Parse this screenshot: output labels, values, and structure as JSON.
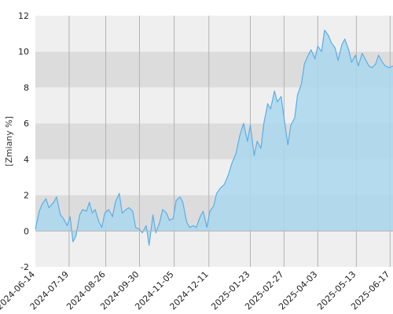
{
  "chart_data": {
    "type": "area",
    "title": "",
    "xlabel": "",
    "ylabel": "[Zmiany %]",
    "ylim": [
      -2,
      12
    ],
    "yticks": [
      "-2",
      "0",
      "2",
      "4",
      "6",
      "8",
      "10",
      "12"
    ],
    "x_range": [
      "2024-06-14",
      "2025-06-20"
    ],
    "xticks": [
      "2024-06-14",
      "2024-07-19",
      "2024-08-26",
      "2024-09-30",
      "2024-11-05",
      "2024-12-11",
      "2025-01-23",
      "2025-02-27",
      "2025-04-03",
      "2025-05-13",
      "2025-06-17"
    ],
    "grid": true,
    "banded_background": true,
    "legend": "none",
    "colors": {
      "line": "#5aaee6",
      "fill": "#aad7ee",
      "band_light": "#efefef",
      "band_dark": "#dcdcdc",
      "gridline": "#b3b3b3"
    },
    "series": [
      {
        "x": [
          "2024-06-14",
          "2024-06-18",
          "2024-06-21",
          "2024-06-25",
          "2024-06-28",
          "2024-07-03",
          "2024-07-06",
          "2024-07-10",
          "2024-07-13",
          "2024-07-17",
          "2024-07-20",
          "2024-07-23",
          "2024-07-26",
          "2024-07-30",
          "2024-08-02",
          "2024-08-06",
          "2024-08-09",
          "2024-08-12",
          "2024-08-15",
          "2024-08-19",
          "2024-08-22",
          "2024-08-25",
          "2024-08-29",
          "2024-09-02",
          "2024-09-05",
          "2024-09-09",
          "2024-09-12",
          "2024-09-16",
          "2024-09-19",
          "2024-09-23",
          "2024-09-26",
          "2024-09-30",
          "2024-10-03",
          "2024-10-07",
          "2024-10-10",
          "2024-10-14",
          "2024-10-17",
          "2024-10-21",
          "2024-10-24",
          "2024-10-28",
          "2024-10-31",
          "2024-11-04",
          "2024-11-07",
          "2024-11-11",
          "2024-11-14",
          "2024-11-18",
          "2024-11-21",
          "2024-11-25",
          "2024-11-28",
          "2024-12-02",
          "2024-12-05",
          "2024-12-09",
          "2024-12-12",
          "2024-12-16",
          "2024-12-19",
          "2024-12-23",
          "2024-12-27",
          "2024-12-31",
          "2025-01-04",
          "2025-01-08",
          "2025-01-12",
          "2025-01-16",
          "2025-01-20",
          "2025-01-23",
          "2025-01-27",
          "2025-01-30",
          "2025-02-03",
          "2025-02-06",
          "2025-02-10",
          "2025-02-13",
          "2025-02-17",
          "2025-02-20",
          "2025-02-24",
          "2025-02-27",
          "2025-03-03",
          "2025-03-06",
          "2025-03-10",
          "2025-03-13",
          "2025-03-17",
          "2025-03-20",
          "2025-03-24",
          "2025-03-27",
          "2025-03-31",
          "2025-04-03",
          "2025-04-07",
          "2025-04-10",
          "2025-04-14",
          "2025-04-17",
          "2025-04-21",
          "2025-04-24",
          "2025-04-28",
          "2025-05-01",
          "2025-05-05",
          "2025-05-08",
          "2025-05-12",
          "2025-05-15",
          "2025-05-19",
          "2025-05-22",
          "2025-05-26",
          "2025-05-29",
          "2025-06-02",
          "2025-06-05",
          "2025-06-09",
          "2025-06-12",
          "2025-06-16",
          "2025-06-20"
        ],
        "values": [
          0.1,
          1.1,
          1.5,
          1.8,
          1.3,
          1.6,
          1.9,
          0.9,
          0.7,
          0.3,
          0.8,
          -0.6,
          -0.3,
          0.9,
          1.2,
          1.1,
          1.6,
          1.0,
          1.2,
          0.5,
          0.2,
          1.0,
          1.2,
          0.8,
          1.6,
          2.1,
          1.0,
          1.2,
          1.3,
          1.1,
          0.2,
          0.1,
          -0.1,
          0.3,
          -0.8,
          0.9,
          -0.1,
          0.5,
          1.2,
          1.0,
          0.6,
          0.7,
          1.7,
          1.9,
          1.6,
          0.5,
          0.2,
          0.3,
          0.2,
          0.8,
          1.1,
          0.2,
          1.1,
          1.4,
          2.1,
          2.4,
          2.6,
          3.1,
          3.8,
          4.3,
          5.3,
          6.0,
          5.0,
          5.9,
          4.2,
          5.0,
          4.6,
          6.0,
          7.1,
          6.8,
          7.8,
          7.2,
          7.5,
          6.3,
          4.8,
          5.9,
          6.3,
          7.6,
          8.2,
          9.3,
          9.8,
          10.1,
          9.6,
          10.3,
          10.0,
          11.2,
          10.9,
          10.5,
          10.2,
          9.5,
          10.4,
          10.7,
          10.1,
          9.4,
          9.8,
          9.2,
          9.9,
          9.6,
          9.2,
          9.1,
          9.3,
          9.8,
          9.4,
          9.2,
          9.1,
          9.2
        ]
      }
    ]
  }
}
